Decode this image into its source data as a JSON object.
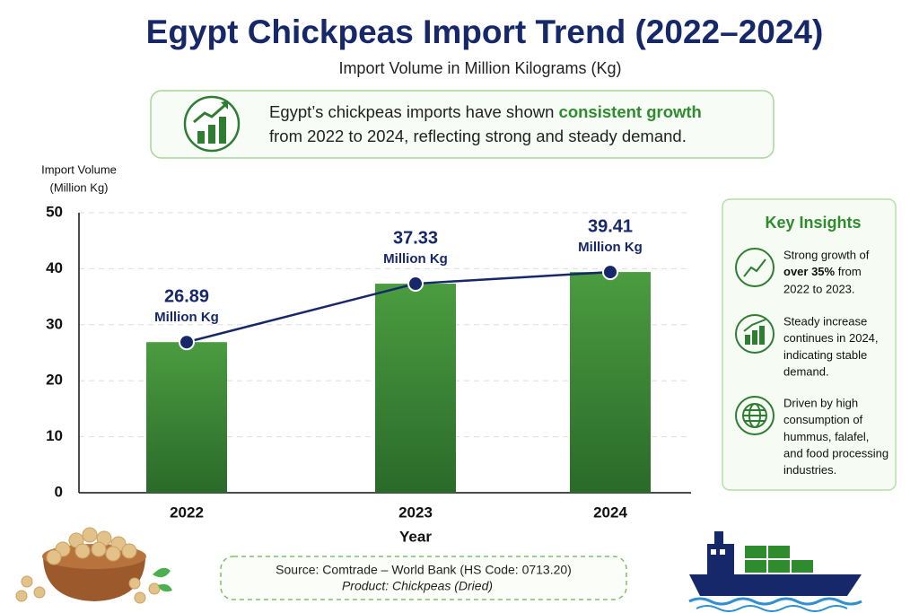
{
  "chart_data": {
    "type": "bar",
    "title": "Egypt Chickpeas Import Trend (2022–2024)",
    "subtitle": "Import Volume in Million Kilograms (Kg)",
    "callout": {
      "text_before": "Egypt’s chickpeas imports have shown",
      "highlight": "consistent growth",
      "text_after": "from 2022 to 2024, reflecting strong and steady demand."
    },
    "y_label": [
      "Import Volume",
      "(Million Kg)"
    ],
    "x_label": "Year",
    "categories": [
      "2022",
      "2023",
      "2024"
    ],
    "values": [
      26.89,
      37.33,
      39.41
    ],
    "value_unit": "Million Kg",
    "bar_color": "#3a8a34",
    "line_color": "#16286a",
    "ylim": [
      0,
      50
    ],
    "yticks": [
      0,
      10,
      20,
      30,
      40,
      50
    ],
    "grid": true,
    "insights": {
      "title": "Key Insights",
      "items": [
        {
          "before": "Strong growth of",
          "bold": "over 35%",
          "mid": "from",
          "after": "2022 to 2023."
        },
        {
          "lines": [
            "Steady increase",
            "continues in 2024,",
            "indicating stable",
            "demand."
          ]
        },
        {
          "lines": [
            "Driven by high",
            "consumption of",
            "hummus, falafel,",
            "and food processing",
            "industries."
          ]
        }
      ]
    },
    "source": "Source: Comtrade – World Bank (HS Code: 0713.20)",
    "product": "Product: Chickpeas (Dried)"
  }
}
